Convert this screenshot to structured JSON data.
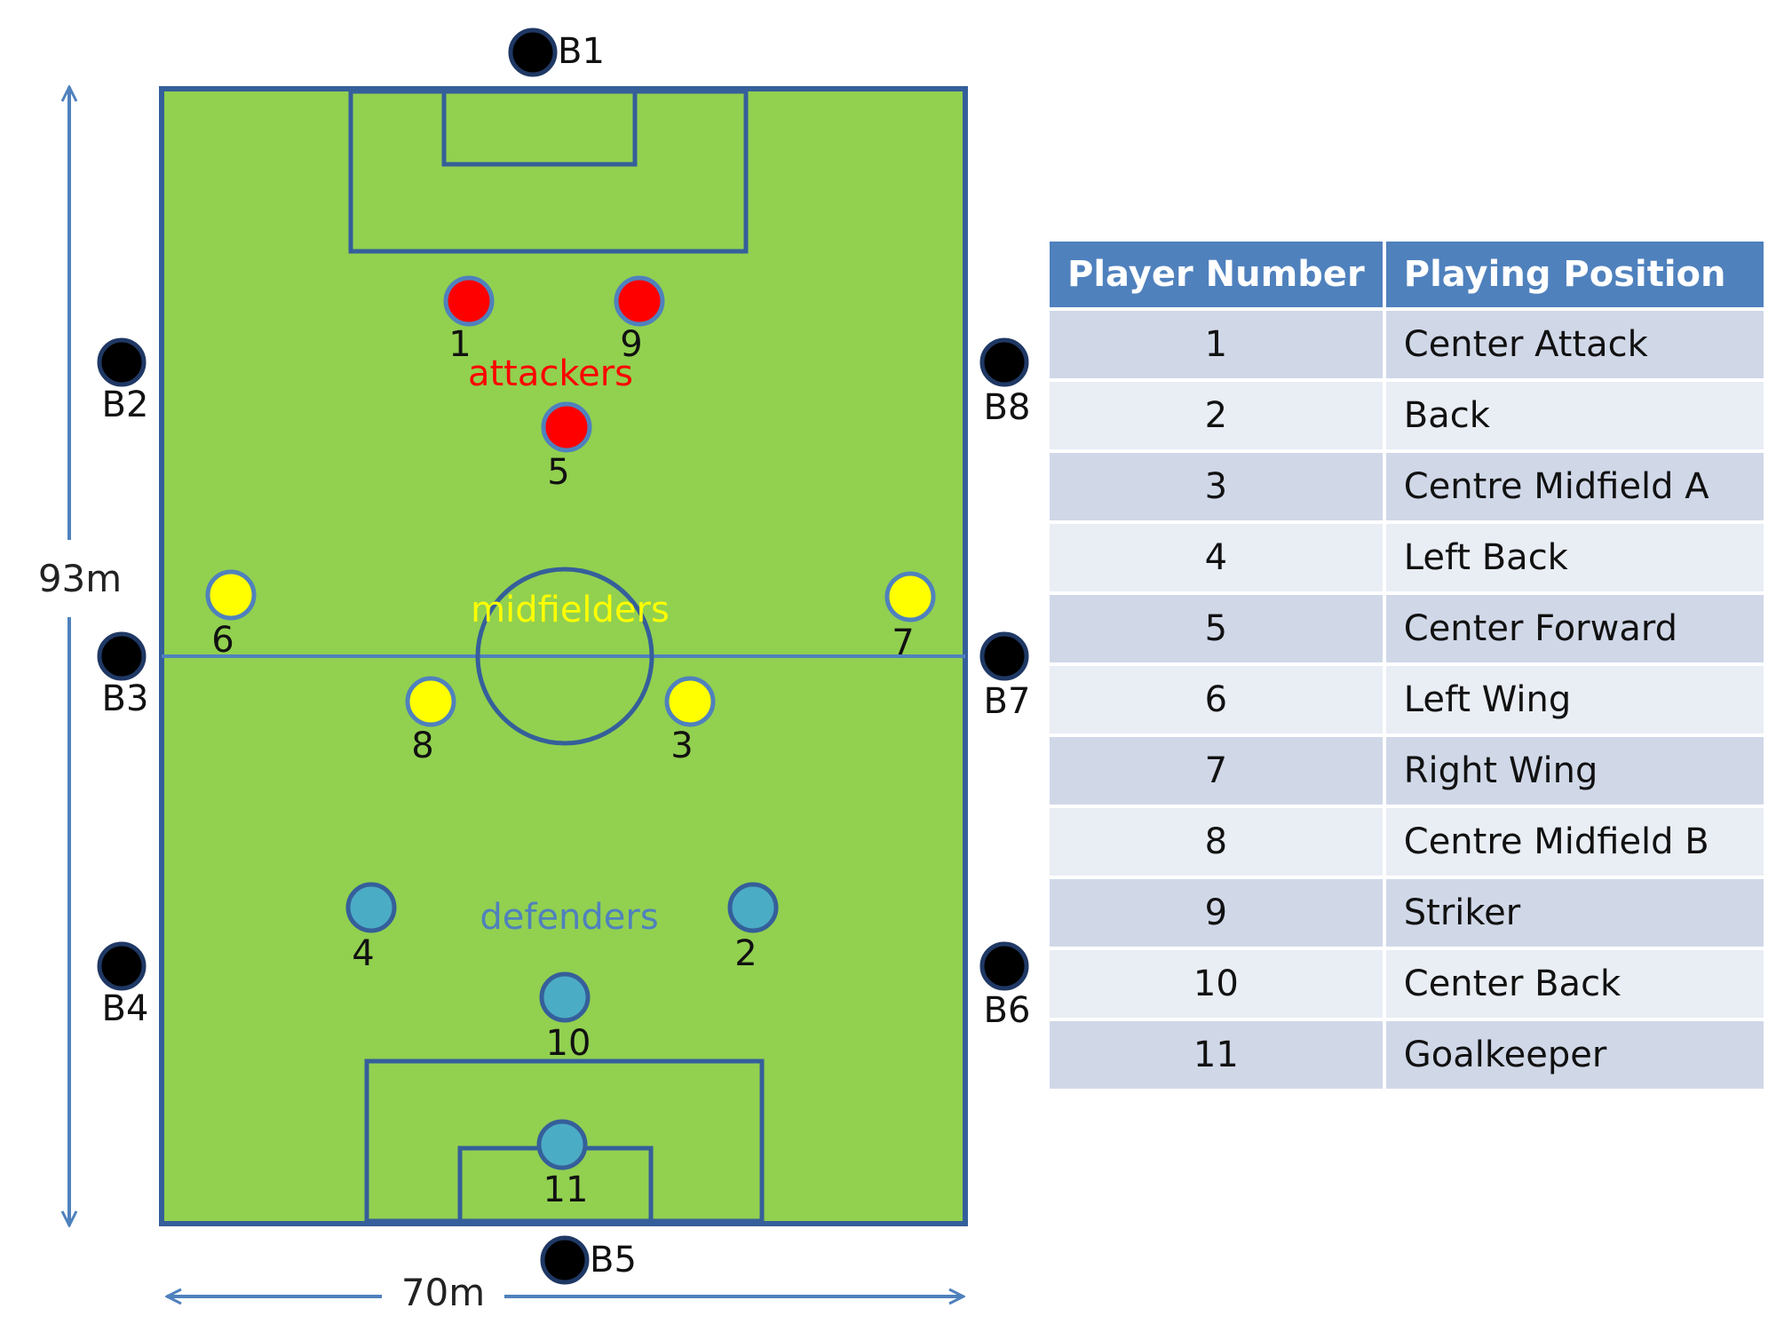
{
  "field": {
    "color": "#92d050",
    "line_color": "#355f9a",
    "length_label": "93m",
    "width_label": "70m"
  },
  "groups": {
    "attackers": {
      "label": "attackers",
      "color": "#ff0000"
    },
    "midfielders": {
      "label": "midfielders",
      "color": "#ffff00"
    },
    "defenders": {
      "label": "defenders",
      "color": "#4f81bd"
    }
  },
  "players": [
    {
      "number": "1",
      "group": "attackers",
      "color": "#ff0000"
    },
    {
      "number": "9",
      "group": "attackers",
      "color": "#ff0000"
    },
    {
      "number": "5",
      "group": "attackers",
      "color": "#ff0000"
    },
    {
      "number": "6",
      "group": "midfielders",
      "color": "#ffff00"
    },
    {
      "number": "7",
      "group": "midfielders",
      "color": "#ffff00"
    },
    {
      "number": "8",
      "group": "midfielders",
      "color": "#ffff00"
    },
    {
      "number": "3",
      "group": "midfielders",
      "color": "#ffff00"
    },
    {
      "number": "4",
      "group": "defenders",
      "color": "#4bacc6"
    },
    {
      "number": "2",
      "group": "defenders",
      "color": "#4bacc6"
    },
    {
      "number": "10",
      "group": "defenders",
      "color": "#4bacc6"
    },
    {
      "number": "11",
      "group": "defenders",
      "color": "#4bacc6"
    }
  ],
  "markers": [
    "B1",
    "B2",
    "B3",
    "B4",
    "B5",
    "B6",
    "B7",
    "B8"
  ],
  "table": {
    "headers": [
      "Player Number",
      "Playing Position"
    ],
    "rows": [
      {
        "number": "1",
        "position": "Center Attack"
      },
      {
        "number": "2",
        "position": "Back"
      },
      {
        "number": "3",
        "position": "Centre Midfield A"
      },
      {
        "number": "4",
        "position": "Left Back"
      },
      {
        "number": "5",
        "position": "Center Forward"
      },
      {
        "number": "6",
        "position": "Left Wing"
      },
      {
        "number": "7",
        "position": "Right Wing"
      },
      {
        "number": "8",
        "position": "Centre Midfield B"
      },
      {
        "number": "9",
        "position": "Striker"
      },
      {
        "number": "10",
        "position": "Center Back"
      },
      {
        "number": "11",
        "position": "Goalkeeper"
      }
    ]
  }
}
